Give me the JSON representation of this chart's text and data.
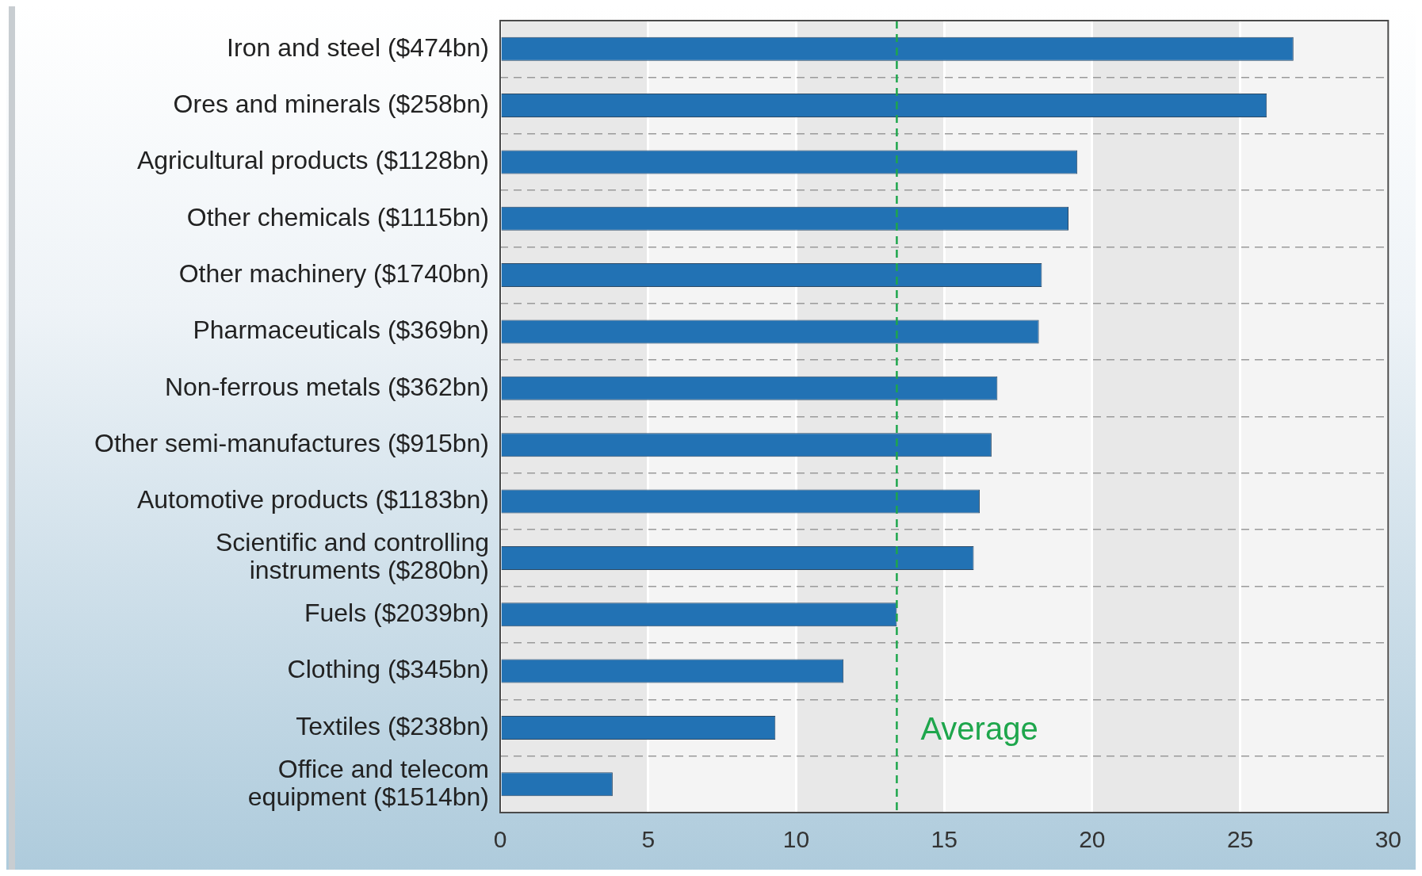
{
  "chart_data": {
    "type": "bar",
    "orientation": "horizontal",
    "categories": [
      "Iron and steel ($474bn)",
      "Ores and minerals ($258bn)",
      "Agricultural products ($1128bn)",
      "Other chemicals ($1115bn)",
      "Other machinery ($1740bn)",
      "Pharmaceuticals ($369bn)",
      "Non-ferrous metals ($362bn)",
      "Other semi-manufactures ($915bn)",
      "Automotive products ($1183bn)",
      "Scientific and controlling instruments ($280bn)",
      "Fuels ($2039bn)",
      "Clothing ($345bn)",
      "Textiles ($238bn)",
      "Office and telecom equipment ($1514bn)"
    ],
    "values": [
      26.8,
      25.9,
      19.5,
      19.2,
      18.3,
      18.2,
      16.8,
      16.6,
      16.2,
      16.0,
      13.4,
      11.6,
      9.3,
      3.8
    ],
    "color": "#2272b4",
    "xlim": [
      0,
      30
    ],
    "xticks": [
      0,
      5,
      10,
      15,
      20,
      25,
      30
    ],
    "grid": true,
    "legend": false,
    "ref_lines": [
      {
        "axis": "x",
        "value": 13.4,
        "label": "Average",
        "color": "#1ea64c",
        "line_style": "dashed"
      }
    ]
  }
}
